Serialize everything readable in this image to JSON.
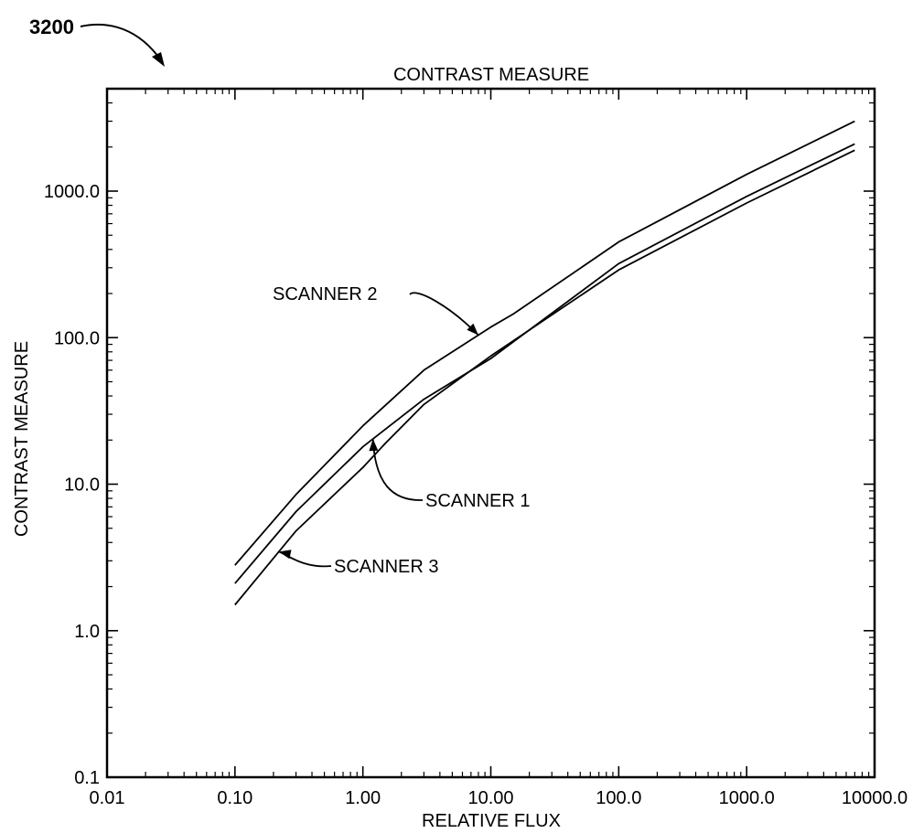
{
  "figure_label": "3200",
  "chart_data": {
    "type": "line",
    "title": "CONTRAST MEASURE",
    "xlabel": "RELATIVE FLUX",
    "ylabel": "CONTRAST MEASURE",
    "xscale": "log",
    "yscale": "log",
    "xlim": [
      0.01,
      10000
    ],
    "ylim": [
      0.1,
      5000
    ],
    "x_ticks": [
      0.01,
      0.1,
      1,
      10,
      100,
      1000,
      10000
    ],
    "x_tick_labels": [
      "0.01",
      "0.10",
      "1.00",
      "10.00",
      "100.0",
      "1000.0",
      "10000.0"
    ],
    "y_ticks": [
      0.1,
      1,
      10,
      100,
      1000
    ],
    "y_tick_labels": [
      "0.1",
      "1.0",
      "10.0",
      "100.0",
      "1000.0"
    ],
    "grid": false,
    "legend": "none",
    "series": [
      {
        "name": "SCANNER 2",
        "x": [
          0.1,
          0.3,
          1,
          3,
          10,
          15,
          100,
          1000,
          7000
        ],
        "y": [
          2.8,
          8.5,
          25,
          60,
          118,
          145,
          450,
          1300,
          3000
        ]
      },
      {
        "name": "SCANNER 1",
        "x": [
          0.1,
          0.3,
          1,
          3,
          10,
          100,
          1000,
          7000
        ],
        "y": [
          2.1,
          6.5,
          18,
          38,
          72,
          320,
          920,
          2100
        ]
      },
      {
        "name": "SCANNER 3",
        "x": [
          0.1,
          0.3,
          1,
          1.5,
          3,
          10,
          100,
          1000,
          7000
        ],
        "y": [
          1.5,
          4.8,
          13,
          19,
          35,
          75,
          290,
          830,
          1900
        ]
      }
    ],
    "annotations": [
      {
        "text": "SCANNER 2",
        "series": "SCANNER 2",
        "at_x": 8
      },
      {
        "text": "SCANNER 1",
        "series": "SCANNER 1",
        "at_x": 1.2
      },
      {
        "text": "SCANNER 3",
        "series": "SCANNER 3",
        "at_x": 0.22
      }
    ]
  }
}
